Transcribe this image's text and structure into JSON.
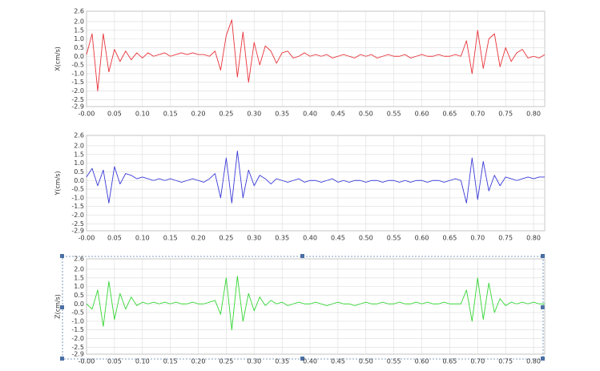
{
  "chart_data": [
    {
      "type": "line",
      "ylabel": "X(cm/s)",
      "color": "#e8333a",
      "x": [
        0,
        0.01,
        0.02,
        0.03,
        0.04,
        0.05,
        0.06,
        0.07,
        0.08,
        0.09,
        0.1,
        0.11,
        0.12,
        0.13,
        0.14,
        0.15,
        0.16,
        0.17,
        0.18,
        0.19,
        0.2,
        0.21,
        0.22,
        0.23,
        0.24,
        0.25,
        0.26,
        0.27,
        0.28,
        0.29,
        0.3,
        0.31,
        0.32,
        0.33,
        0.34,
        0.35,
        0.36,
        0.37,
        0.38,
        0.39,
        0.4,
        0.41,
        0.42,
        0.43,
        0.44,
        0.45,
        0.46,
        0.47,
        0.48,
        0.49,
        0.5,
        0.51,
        0.52,
        0.53,
        0.54,
        0.55,
        0.56,
        0.57,
        0.58,
        0.59,
        0.6,
        0.61,
        0.62,
        0.63,
        0.64,
        0.65,
        0.66,
        0.67,
        0.68,
        0.69,
        0.7,
        0.71,
        0.72,
        0.73,
        0.74,
        0.75,
        0.76,
        0.77,
        0.78,
        0.79,
        0.8,
        0.81,
        0.82
      ],
      "values": [
        0.1,
        1.3,
        -2.0,
        1.3,
        -0.9,
        0.4,
        -0.3,
        0.3,
        -0.2,
        0.2,
        -0.1,
        0.2,
        0.0,
        0.1,
        0.2,
        0.0,
        0.1,
        0.2,
        0.1,
        0.2,
        0.1,
        0.1,
        0.0,
        0.3,
        -0.8,
        1.2,
        2.1,
        -1.2,
        1.4,
        -1.5,
        0.8,
        -0.5,
        0.6,
        0.3,
        -0.4,
        0.2,
        0.3,
        -0.1,
        0.0,
        0.2,
        0.0,
        0.1,
        0.0,
        0.1,
        -0.1,
        0.0,
        0.1,
        0.0,
        -0.1,
        0.1,
        0.0,
        0.1,
        -0.1,
        0.0,
        0.1,
        0.0,
        0.0,
        0.1,
        -0.1,
        0.0,
        0.1,
        0.0,
        0.0,
        0.1,
        0.0,
        0.0,
        0.1,
        0.0,
        0.9,
        -1.0,
        1.5,
        -0.7,
        1.0,
        1.3,
        -0.6,
        0.5,
        -0.3,
        0.2,
        0.4,
        -0.1,
        0.0,
        -0.1,
        0.1
      ],
      "xlim": [
        0,
        0.82
      ],
      "xticks": [
        {
          "value": 0,
          "label": "-0.00"
        },
        0.05,
        {
          "value": 0.1,
          "label": "0.10"
        },
        0.15,
        {
          "value": 0.2,
          "label": "0.20"
        },
        0.25,
        {
          "value": 0.3,
          "label": "0.30"
        },
        0.35,
        {
          "value": 0.4,
          "label": "0.40"
        },
        0.45,
        {
          "value": 0.5,
          "label": "0.50"
        },
        0.55,
        {
          "value": 0.6,
          "label": "0.60"
        },
        0.65,
        {
          "value": 0.7,
          "label": "0.70"
        },
        0.75,
        {
          "value": 0.8,
          "label": "0.80"
        }
      ],
      "ylim": [
        -2.9,
        2.6
      ],
      "yticks": [
        2.6,
        {
          "value": 2,
          "label": "2.0"
        },
        1.5,
        {
          "value": 1,
          "label": "1.0"
        },
        0.5,
        {
          "value": 0,
          "label": "0.0"
        },
        -0.5,
        {
          "value": -1,
          "label": "-1.0"
        },
        -1.5,
        {
          "value": -2,
          "label": "-2.0"
        },
        -2.5,
        -2.9
      ],
      "grid": true
    },
    {
      "type": "line",
      "ylabel": "Y(cm/s)",
      "color": "#3a3ad8",
      "x": [
        0,
        0.01,
        0.02,
        0.03,
        0.04,
        0.05,
        0.06,
        0.07,
        0.08,
        0.09,
        0.1,
        0.11,
        0.12,
        0.13,
        0.14,
        0.15,
        0.16,
        0.17,
        0.18,
        0.19,
        0.2,
        0.21,
        0.22,
        0.23,
        0.24,
        0.25,
        0.26,
        0.27,
        0.28,
        0.29,
        0.3,
        0.31,
        0.32,
        0.33,
        0.34,
        0.35,
        0.36,
        0.37,
        0.38,
        0.39,
        0.4,
        0.41,
        0.42,
        0.43,
        0.44,
        0.45,
        0.46,
        0.47,
        0.48,
        0.49,
        0.5,
        0.51,
        0.52,
        0.53,
        0.54,
        0.55,
        0.56,
        0.57,
        0.58,
        0.59,
        0.6,
        0.61,
        0.62,
        0.63,
        0.64,
        0.65,
        0.66,
        0.67,
        0.68,
        0.69,
        0.7,
        0.71,
        0.72,
        0.73,
        0.74,
        0.75,
        0.76,
        0.77,
        0.78,
        0.79,
        0.8,
        0.81,
        0.82
      ],
      "values": [
        0.2,
        0.7,
        -0.3,
        0.6,
        -1.3,
        0.8,
        -0.2,
        0.4,
        0.3,
        0.1,
        0.2,
        0.1,
        0.0,
        0.1,
        0.0,
        0.1,
        0.0,
        -0.1,
        0.0,
        0.1,
        0.0,
        -0.1,
        0.1,
        0.4,
        -1.0,
        1.3,
        -1.3,
        1.7,
        -1.0,
        0.6,
        -0.3,
        0.3,
        0.1,
        -0.2,
        0.1,
        0.0,
        -0.1,
        0.0,
        0.1,
        -0.1,
        0.0,
        0.0,
        -0.1,
        0.0,
        0.1,
        -0.1,
        0.0,
        -0.1,
        0.0,
        0.0,
        -0.1,
        0.0,
        0.0,
        -0.1,
        0.0,
        0.0,
        -0.1,
        0.0,
        -0.1,
        0.0,
        0.0,
        -0.1,
        0.0,
        0.0,
        -0.1,
        0.0,
        0.1,
        0.0,
        -1.3,
        1.3,
        -1.1,
        1.1,
        -0.6,
        0.3,
        -0.3,
        0.2,
        0.1,
        0.0,
        0.1,
        0.2,
        0.1,
        0.2,
        0.2
      ],
      "xlim": [
        0,
        0.82
      ],
      "xticks": [
        {
          "value": 0,
          "label": "-0.00"
        },
        0.05,
        {
          "value": 0.1,
          "label": "0.10"
        },
        0.15,
        {
          "value": 0.2,
          "label": "0.20"
        },
        0.25,
        {
          "value": 0.3,
          "label": "0.30"
        },
        0.35,
        {
          "value": 0.4,
          "label": "0.40"
        },
        0.45,
        {
          "value": 0.5,
          "label": "0.50"
        },
        0.55,
        {
          "value": 0.6,
          "label": "0.60"
        },
        0.65,
        {
          "value": 0.7,
          "label": "0.70"
        },
        0.75,
        {
          "value": 0.8,
          "label": "0.80"
        }
      ],
      "ylim": [
        -2.9,
        2.6
      ],
      "yticks": [
        2.6,
        {
          "value": 2,
          "label": "2.0"
        },
        1.5,
        {
          "value": 1,
          "label": "1.0"
        },
        0.5,
        {
          "value": 0,
          "label": "0.0"
        },
        -0.5,
        {
          "value": -1,
          "label": "-1.0"
        },
        -1.5,
        {
          "value": -2,
          "label": "-2.0"
        },
        -2.5,
        -2.9
      ],
      "grid": true
    },
    {
      "type": "line",
      "ylabel": "Z(cm/s)",
      "color": "#33d633",
      "x": [
        0,
        0.01,
        0.02,
        0.03,
        0.04,
        0.05,
        0.06,
        0.07,
        0.08,
        0.09,
        0.1,
        0.11,
        0.12,
        0.13,
        0.14,
        0.15,
        0.16,
        0.17,
        0.18,
        0.19,
        0.2,
        0.21,
        0.22,
        0.23,
        0.24,
        0.25,
        0.26,
        0.27,
        0.28,
        0.29,
        0.3,
        0.31,
        0.32,
        0.33,
        0.34,
        0.35,
        0.36,
        0.37,
        0.38,
        0.39,
        0.4,
        0.41,
        0.42,
        0.43,
        0.44,
        0.45,
        0.46,
        0.47,
        0.48,
        0.49,
        0.5,
        0.51,
        0.52,
        0.53,
        0.54,
        0.55,
        0.56,
        0.57,
        0.58,
        0.59,
        0.6,
        0.61,
        0.62,
        0.63,
        0.64,
        0.65,
        0.66,
        0.67,
        0.68,
        0.69,
        0.7,
        0.71,
        0.72,
        0.73,
        0.74,
        0.75,
        0.76,
        0.77,
        0.78,
        0.79,
        0.8,
        0.81,
        0.82
      ],
      "values": [
        0.0,
        -0.3,
        0.8,
        -1.3,
        1.3,
        -0.9,
        0.6,
        -0.3,
        0.4,
        -0.1,
        0.1,
        0.0,
        0.1,
        0.0,
        0.1,
        0.0,
        0.1,
        0.0,
        0.0,
        0.1,
        0.0,
        0.0,
        0.1,
        0.2,
        -0.6,
        1.5,
        -1.5,
        1.6,
        -1.0,
        0.6,
        -0.4,
        0.4,
        -0.1,
        0.2,
        0.0,
        0.1,
        -0.1,
        0.0,
        0.1,
        0.0,
        0.0,
        0.1,
        0.0,
        -0.1,
        0.0,
        0.1,
        0.0,
        0.0,
        -0.1,
        0.0,
        0.1,
        0.0,
        0.0,
        0.1,
        0.0,
        0.0,
        0.1,
        0.0,
        0.0,
        0.1,
        0.0,
        0.1,
        0.0,
        0.0,
        0.1,
        0.0,
        0.0,
        0.0,
        0.8,
        -1.0,
        1.5,
        -0.9,
        1.2,
        -0.5,
        0.3,
        -0.1,
        0.1,
        0.0,
        0.1,
        0.0,
        0.1,
        0.0,
        0.0
      ],
      "xlim": [
        0,
        0.82
      ],
      "xticks": [
        {
          "value": 0,
          "label": "-0.00"
        },
        0.05,
        {
          "value": 0.1,
          "label": "0.10"
        },
        0.15,
        {
          "value": 0.2,
          "label": "0.20"
        },
        0.25,
        {
          "value": 0.3,
          "label": "0.30"
        },
        0.35,
        {
          "value": 0.4,
          "label": "0.40"
        },
        0.45,
        {
          "value": 0.5,
          "label": "0.50"
        },
        0.55,
        {
          "value": 0.6,
          "label": "0.60"
        },
        0.65,
        {
          "value": 0.7,
          "label": "0.70"
        },
        0.75,
        {
          "value": 0.8,
          "label": "0.80"
        }
      ],
      "ylim": [
        -2.9,
        2.6
      ],
      "yticks": [
        2.6,
        {
          "value": 2,
          "label": "2.0"
        },
        1.5,
        {
          "value": 1,
          "label": "1.0"
        },
        0.5,
        {
          "value": 0,
          "label": "0.0"
        },
        -0.5,
        {
          "value": -1,
          "label": "-1.0"
        },
        -1.5,
        {
          "value": -2,
          "label": "-2.0"
        },
        -2.5,
        -2.9
      ],
      "grid": true
    }
  ]
}
